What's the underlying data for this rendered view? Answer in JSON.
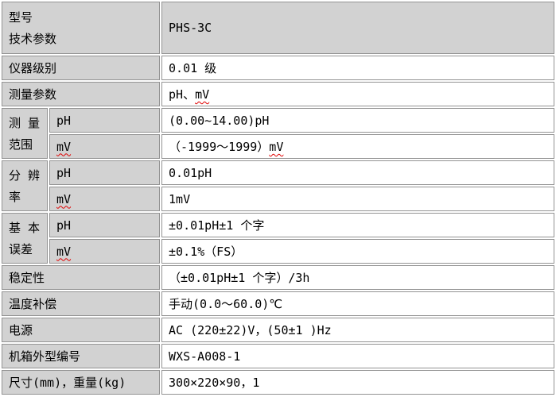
{
  "colors": {
    "label_cell_bg": "#d2d2d2",
    "value_cell_bg": "#ffffff",
    "border": "#939393",
    "text": "#000000",
    "spellcheck_underline": "#e00000"
  },
  "header": {
    "label_line1": "型号",
    "label_line2": "技术参数",
    "value": "PHS-3C"
  },
  "rows": {
    "instrument_grade": {
      "label": "仪器级别",
      "value": "0.01 级"
    },
    "measure_params": {
      "label": "测量参数",
      "value_pre": "pH、",
      "value_mv": "mV"
    },
    "range": {
      "label_line1": "测 量",
      "label_line2": "范围",
      "ph_label": "pH",
      "mv_label": "mV",
      "ph_value": "(0.00~14.00)pH",
      "mv_value_pre": "（-1999～1999）",
      "mv_value_mv": "mV"
    },
    "resolution": {
      "label_line1": "分 辨",
      "label_line2": "率",
      "ph_label": "pH",
      "mv_label": "mV",
      "ph_value": "0.01pH",
      "mv_value": "1mV"
    },
    "error": {
      "label_line1": "基 本",
      "label_line2": "误差",
      "ph_label": "pH",
      "mv_label": "mV",
      "ph_value": "±0.01pH±1 个字",
      "mv_value": "±0.1%（FS）"
    },
    "stability": {
      "label": "稳定性",
      "value": "（±0.01pH±1 个字）/3h"
    },
    "temp_compensation": {
      "label": "温度补偿",
      "value": "手动(0.0～60.0)℃"
    },
    "power": {
      "label": "电源",
      "value": "AC (220±22)V，(50±1 )Hz"
    },
    "case_model": {
      "label": "机箱外型编号",
      "value": "WXS-A008-1"
    },
    "dimensions_weight": {
      "label": "尺寸(mm)，重量(kg)",
      "value": "300×220×90，1"
    }
  }
}
